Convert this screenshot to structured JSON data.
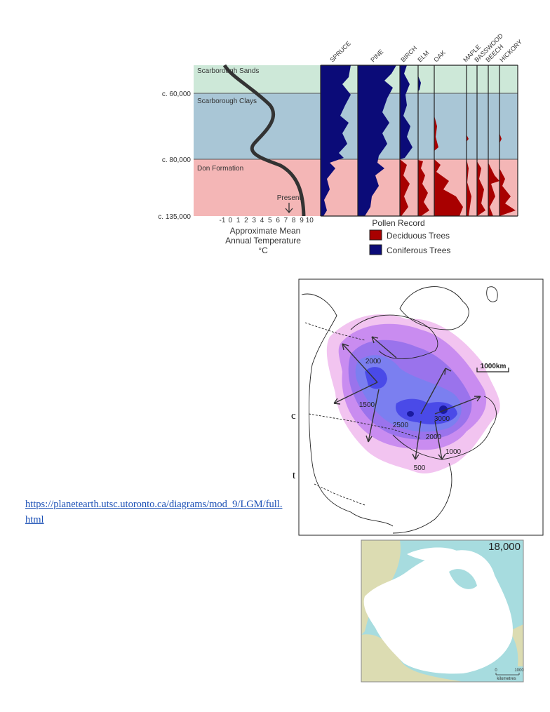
{
  "figure1": {
    "layers": [
      "Scarborough Sands",
      "Scarborough Clays",
      "Don Formation"
    ],
    "ages": [
      "c. 60,000",
      "c. 80,000",
      "c. 135,000"
    ],
    "present_label": "Present",
    "temperature_ticks": [
      -1,
      0,
      1,
      2,
      3,
      4,
      5,
      6,
      7,
      8,
      9,
      10
    ],
    "axis_title": [
      "Approximate Mean",
      "Annual Temperature",
      "°C"
    ],
    "pollen_columns": [
      "SPRUCE",
      "PINE",
      "BIRCH",
      "ELM",
      "OAK",
      "MAPLE",
      "BASSWOOD",
      "BEECH",
      "HICKORY"
    ],
    "legend": {
      "title": "Pollen Record",
      "items": [
        "Deciduous Trees",
        "Coniferous Trees"
      ]
    }
  },
  "figure2": {
    "contour_labels": [
      "2000",
      "1500",
      "2500",
      "3000",
      "2000",
      "1000",
      "500"
    ],
    "scale_label": "1000km"
  },
  "side_letters": [
    "c",
    "t"
  ],
  "link": "https://planetearth.utsc.utoronto.ca/diagrams/mod_9/LGM/full.html",
  "figure3": {
    "year_label": "18,000",
    "scale_ticks": [
      "0",
      "1000"
    ],
    "scale_unit": "kilometres"
  }
}
